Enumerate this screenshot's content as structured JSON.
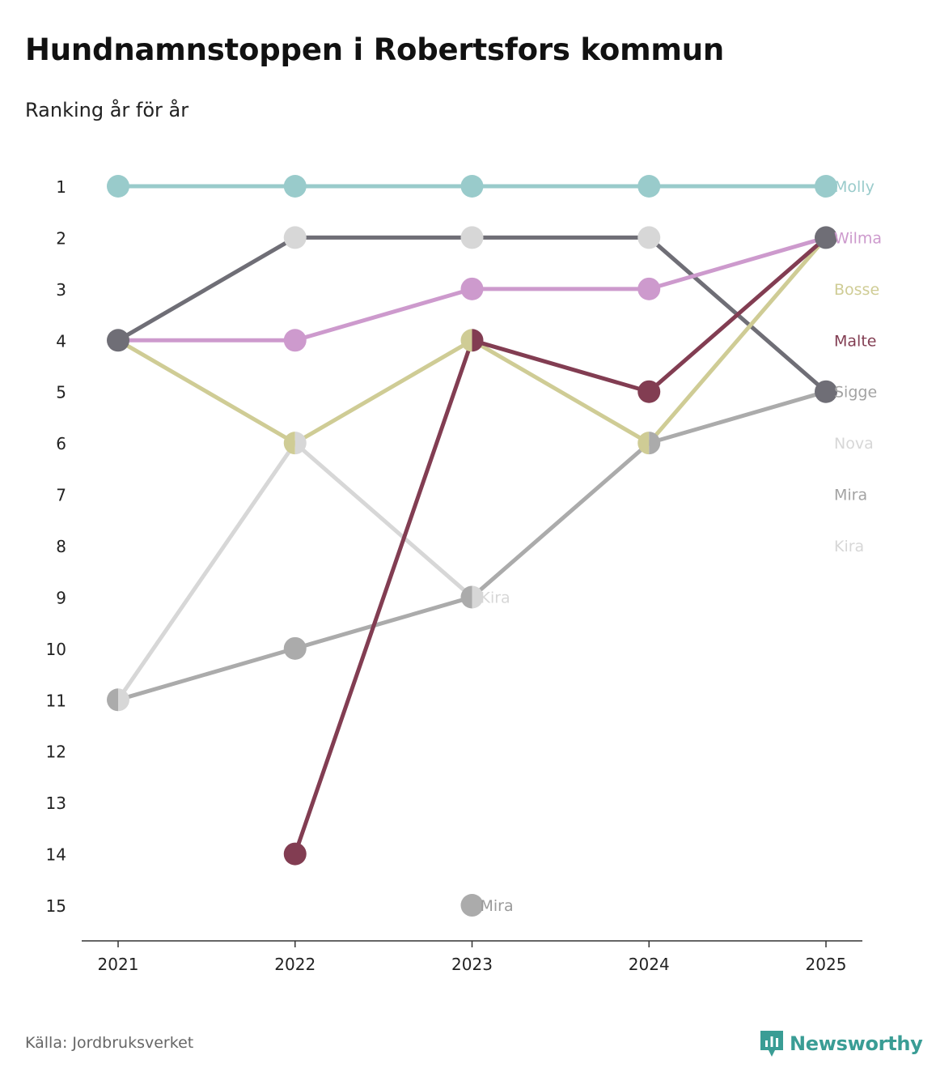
{
  "title": "Hundnamnstoppen i Robertsfors kommun",
  "subtitle": "Ranking år för år",
  "source": "Källa: Jordbruksverket",
  "brand": "Newsworthy",
  "brand_color": "#3a9d95",
  "chart_data": {
    "type": "line",
    "title": "Hundnamnstoppen i Robertsfors kommun",
    "subtitle": "Ranking år för år",
    "x": [
      "2021",
      "2022",
      "2023",
      "2024",
      "2025"
    ],
    "y_ticks": [
      "1",
      "2",
      "3",
      "4",
      "5",
      "6",
      "7",
      "8",
      "9",
      "10",
      "11",
      "12",
      "13",
      "14",
      "15"
    ],
    "ylim": [
      1,
      15
    ],
    "y_inverted": true,
    "series": [
      {
        "name": "Kira",
        "color": "#d7d7d7",
        "values": [
          11,
          6,
          9,
          null,
          null
        ],
        "inline_label": "Kira",
        "inline_index": 2
      },
      {
        "name": "Mira",
        "color": "#ababab",
        "values": [
          11,
          10,
          9,
          6,
          5
        ],
        "extra_point": {
          "x_index": 2,
          "value": 15,
          "label": "Mira"
        }
      },
      {
        "name": "Nova",
        "color": "#d7d7d7",
        "values": [
          4,
          2,
          2,
          2,
          5
        ]
      },
      {
        "name": "Sigge",
        "color": "#6f6e76",
        "values": [
          4,
          2,
          2,
          2,
          5
        ]
      },
      {
        "name": "Wilma",
        "color": "#cd9acd",
        "values": [
          4,
          4,
          3,
          3,
          2
        ]
      },
      {
        "name": "Bosse",
        "color": "#cfcc95",
        "values": [
          4,
          6,
          4,
          6,
          2
        ]
      },
      {
        "name": "Malte",
        "color": "#823d52",
        "values": [
          null,
          14,
          4,
          5,
          2
        ]
      },
      {
        "name": "Molly",
        "color": "#99cbcb",
        "values": [
          1,
          1,
          1,
          1,
          1
        ]
      }
    ],
    "end_labels": [
      {
        "text": "Molly",
        "rank": 1,
        "color": "#99cbcb"
      },
      {
        "text": "Wilma",
        "rank": 2,
        "color": "#cd9acd"
      },
      {
        "text": "Bosse",
        "rank": 3,
        "color": "#cfcc95"
      },
      {
        "text": "Malte",
        "rank": 4,
        "color": "#823d52"
      },
      {
        "text": "Sigge",
        "rank": 5,
        "color": "#a3a3a3"
      },
      {
        "text": "Nova",
        "rank": 6,
        "color": "#d7d7d7"
      },
      {
        "text": "Mira",
        "rank": 7,
        "color": "#a3a3a3"
      },
      {
        "text": "Kira",
        "rank": 8,
        "color": "#d7d7d7"
      }
    ],
    "points": [
      {
        "x_index": 0,
        "rank": 1,
        "colors": [
          "#99cbcb"
        ]
      },
      {
        "x_index": 1,
        "rank": 1,
        "colors": [
          "#99cbcb"
        ]
      },
      {
        "x_index": 2,
        "rank": 1,
        "colors": [
          "#99cbcb"
        ]
      },
      {
        "x_index": 3,
        "rank": 1,
        "colors": [
          "#99cbcb"
        ]
      },
      {
        "x_index": 4,
        "rank": 1,
        "colors": [
          "#99cbcb"
        ]
      },
      {
        "x_index": 1,
        "rank": 2,
        "colors": [
          "#d7d7d7"
        ]
      },
      {
        "x_index": 2,
        "rank": 2,
        "colors": [
          "#d7d7d7"
        ]
      },
      {
        "x_index": 3,
        "rank": 2,
        "colors": [
          "#d7d7d7"
        ]
      },
      {
        "x_index": 4,
        "rank": 2,
        "colors": [
          "#6f6e76"
        ]
      },
      {
        "x_index": 2,
        "rank": 3,
        "colors": [
          "#cd9acd"
        ]
      },
      {
        "x_index": 3,
        "rank": 3,
        "colors": [
          "#cd9acd"
        ]
      },
      {
        "x_index": 0,
        "rank": 4,
        "colors": [
          "#6f6e76"
        ]
      },
      {
        "x_index": 1,
        "rank": 4,
        "colors": [
          "#cd9acd"
        ]
      },
      {
        "x_index": 2,
        "rank": 4,
        "colors": [
          "#cfcc95",
          "#823d52"
        ]
      },
      {
        "x_index": 3,
        "rank": 5,
        "colors": [
          "#823d52"
        ]
      },
      {
        "x_index": 4,
        "rank": 5,
        "colors": [
          "#6f6e76"
        ]
      },
      {
        "x_index": 1,
        "rank": 6,
        "colors": [
          "#cfcc95",
          "#d7d7d7"
        ]
      },
      {
        "x_index": 3,
        "rank": 6,
        "colors": [
          "#cfcc95",
          "#ababab"
        ]
      },
      {
        "x_index": 2,
        "rank": 9,
        "colors": [
          "#ababab",
          "#d7d7d7"
        ]
      },
      {
        "x_index": 1,
        "rank": 10,
        "colors": [
          "#ababab"
        ]
      },
      {
        "x_index": 0,
        "rank": 11,
        "colors": [
          "#ababab",
          "#d7d7d7"
        ]
      },
      {
        "x_index": 1,
        "rank": 14,
        "colors": [
          "#823d52"
        ]
      },
      {
        "x_index": 2,
        "rank": 15,
        "colors": [
          "#ababab"
        ]
      }
    ]
  }
}
